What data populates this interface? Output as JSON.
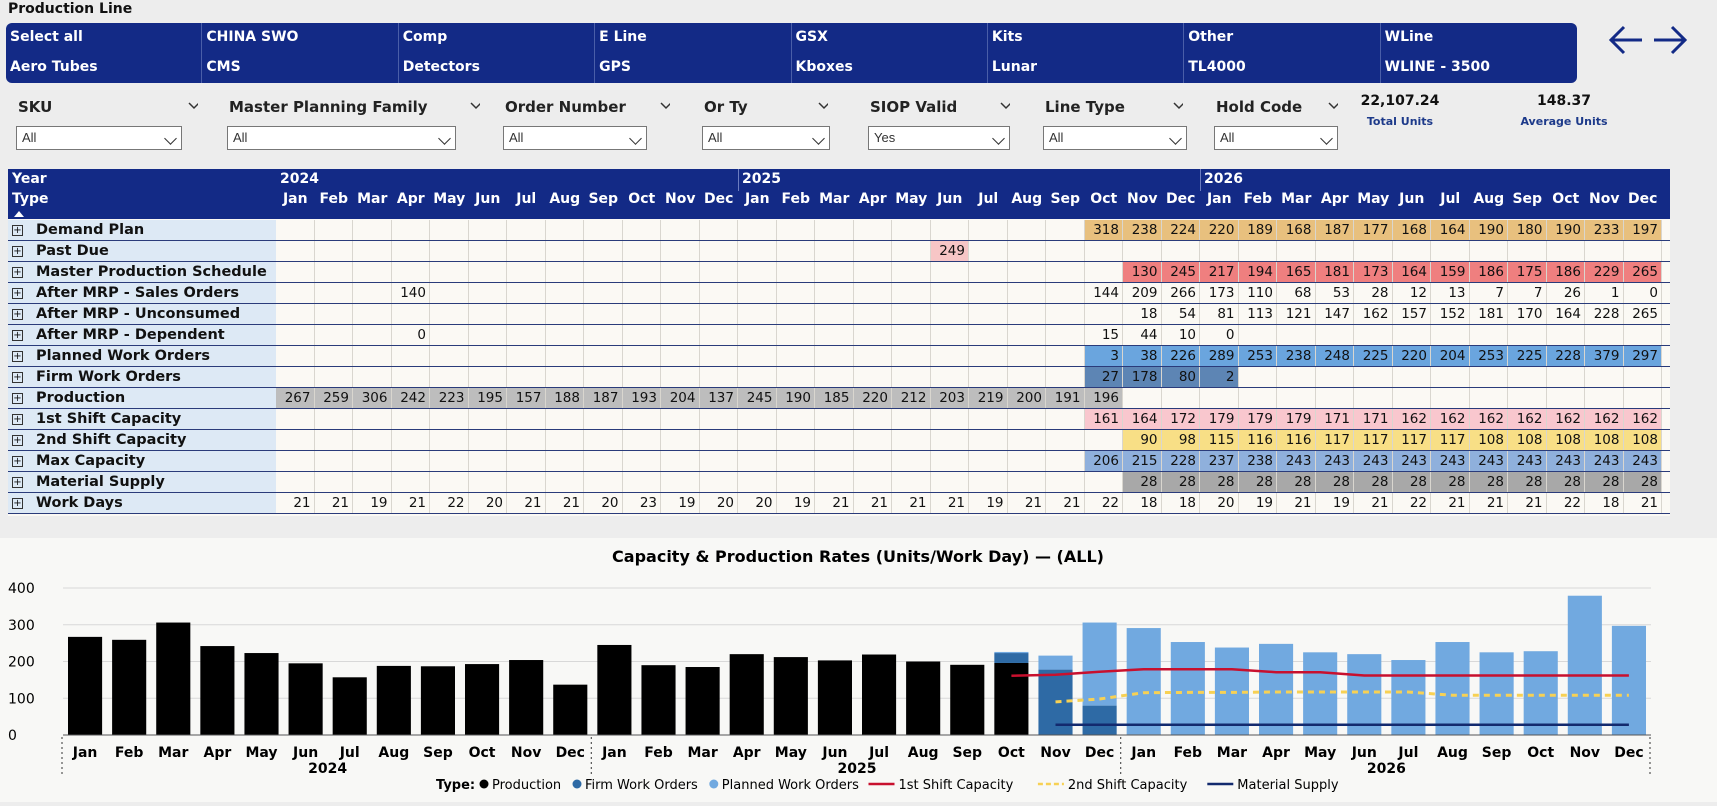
{
  "page_title": "Production Line",
  "slicer_items": [
    "Select all",
    "CHINA SWO",
    "Comp",
    "E Line",
    "GSX",
    "Kits",
    "Other",
    "WLine",
    "Aero Tubes",
    "CMS",
    "Detectors",
    "GPS",
    "Kboxes",
    "Lunar",
    "TL4000",
    "WLINE - 3500"
  ],
  "filters": [
    {
      "label": "SKU",
      "value": "All"
    },
    {
      "label": "Master Planning Family",
      "value": "All"
    },
    {
      "label": "Order Number",
      "value": "All"
    },
    {
      "label": "Or Ty",
      "value": "All"
    },
    {
      "label": "SIOP Valid",
      "value": "Yes"
    },
    {
      "label": "Line Type",
      "value": "All"
    },
    {
      "label": "Hold Code",
      "value": "All"
    }
  ],
  "kpis": [
    {
      "value": "22,107.24",
      "label": "Total Units"
    },
    {
      "value": "148.37",
      "label": "Average Units"
    }
  ],
  "matrix": {
    "year_header": "Year",
    "type_header": "Type",
    "years": [
      "2024",
      "2025",
      "2026"
    ],
    "months": [
      "Jan",
      "Feb",
      "Mar",
      "Apr",
      "May",
      "Jun",
      "Jul",
      "Aug",
      "Sep",
      "Oct",
      "Nov",
      "Dec",
      "Jan",
      "Feb",
      "Mar",
      "Apr",
      "May",
      "Jun",
      "Jul",
      "Aug",
      "Sep",
      "Oct",
      "Nov",
      "Dec",
      "Jan",
      "Feb",
      "Mar",
      "Apr",
      "May",
      "Jun",
      "Jul",
      "Aug",
      "Sep",
      "Oct",
      "Nov",
      "Dec"
    ],
    "rows": [
      {
        "label": "Demand Plan",
        "color": "#e8c07e",
        "start": 21,
        "values": [
          "318",
          "238",
          "224",
          "220",
          "189",
          "168",
          "187",
          "177",
          "168",
          "164",
          "190",
          "180",
          "190",
          "233",
          "197"
        ]
      },
      {
        "label": "Past Due",
        "color": "#f7c6c6",
        "start": 17,
        "values": [
          "249"
        ]
      },
      {
        "label": "Master Production Schedule",
        "color": "#ef7f7f",
        "start": 22,
        "values": [
          "130",
          "245",
          "217",
          "194",
          "165",
          "181",
          "173",
          "164",
          "159",
          "186",
          "175",
          "186",
          "229",
          "265"
        ]
      },
      {
        "label": "After MRP - Sales Orders",
        "color": "",
        "start": 3,
        "values": [
          "140",
          "",
          "",
          "",
          "",
          "",
          "",
          "",
          "",
          "",
          "",
          "",
          "",
          "",
          "",
          "",
          "",
          "",
          "144",
          "209",
          "266",
          "173",
          "110",
          "68",
          "53",
          "28",
          "12",
          "13",
          "7",
          "7",
          "26",
          "1",
          "0"
        ]
      },
      {
        "label": "After MRP - Unconsumed MPS",
        "color": "",
        "start": 22,
        "values": [
          "18",
          "54",
          "81",
          "113",
          "121",
          "147",
          "162",
          "157",
          "152",
          "181",
          "170",
          "164",
          "228",
          "265"
        ]
      },
      {
        "label": "After MRP - Dependent Demand",
        "color": "",
        "start": 3,
        "values": [
          "0",
          "",
          "",
          "",
          "",
          "",
          "",
          "",
          "",
          "",
          "",
          "",
          "",
          "",
          "",
          "",
          "",
          "",
          "15",
          "44",
          "10",
          "0"
        ]
      },
      {
        "label": "Planned Work Orders",
        "color": "#6aa5de",
        "start": 21,
        "values": [
          "3",
          "38",
          "226",
          "289",
          "253",
          "238",
          "248",
          "225",
          "220",
          "204",
          "253",
          "225",
          "228",
          "379",
          "297"
        ]
      },
      {
        "label": "Firm Work Orders",
        "color": "#5d85b4",
        "start": 21,
        "values": [
          "27",
          "178",
          "80",
          "2"
        ]
      },
      {
        "label": "Production",
        "color": "#bdbdbd",
        "start": 0,
        "values": [
          "267",
          "259",
          "306",
          "242",
          "223",
          "195",
          "157",
          "188",
          "187",
          "193",
          "204",
          "137",
          "245",
          "190",
          "185",
          "220",
          "212",
          "203",
          "219",
          "200",
          "191",
          "196"
        ]
      },
      {
        "label": "1st Shift Capacity",
        "color": "#f9c7ce",
        "start": 21,
        "values": [
          "161",
          "164",
          "172",
          "179",
          "179",
          "179",
          "171",
          "171",
          "162",
          "162",
          "162",
          "162",
          "162",
          "162",
          "162"
        ]
      },
      {
        "label": "2nd Shift Capacity",
        "color": "#f8df86",
        "start": 22,
        "values": [
          "90",
          "98",
          "115",
          "116",
          "116",
          "117",
          "117",
          "117",
          "117",
          "108",
          "108",
          "108",
          "108",
          "108"
        ]
      },
      {
        "label": "Max Capacity",
        "color": "#8fb0dc",
        "start": 21,
        "values": [
          "206",
          "215",
          "228",
          "237",
          "238",
          "243",
          "243",
          "243",
          "243",
          "243",
          "243",
          "243",
          "243",
          "243",
          "243"
        ]
      },
      {
        "label": "Material Supply",
        "color": "#a8a8a8",
        "start": 22,
        "values": [
          "28",
          "28",
          "28",
          "28",
          "28",
          "28",
          "28",
          "28",
          "28",
          "28",
          "28",
          "28",
          "28",
          "28"
        ]
      },
      {
        "label": "Work Days",
        "color": "",
        "start": 0,
        "values": [
          "21",
          "21",
          "19",
          "21",
          "22",
          "20",
          "21",
          "21",
          "20",
          "23",
          "19",
          "20",
          "20",
          "19",
          "21",
          "21",
          "21",
          "21",
          "19",
          "21",
          "21",
          "22",
          "18",
          "18",
          "20",
          "19",
          "21",
          "19",
          "21",
          "22",
          "21",
          "21",
          "21",
          "22",
          "18",
          "21"
        ]
      }
    ]
  },
  "chart_data": {
    "type": "bar",
    "title": "Capacity & Production Rates (Units/Work Day) — (ALL)",
    "years": [
      "2024",
      "2025",
      "2026"
    ],
    "categories": [
      "Jan",
      "Feb",
      "Mar",
      "Apr",
      "May",
      "Jun",
      "Jul",
      "Aug",
      "Sep",
      "Oct",
      "Nov",
      "Dec",
      "Jan",
      "Feb",
      "Mar",
      "Apr",
      "May",
      "Jun",
      "Jul",
      "Aug",
      "Sep",
      "Oct",
      "Nov",
      "Dec",
      "Jan",
      "Feb",
      "Mar",
      "Apr",
      "May",
      "Jun",
      "Jul",
      "Aug",
      "Sep",
      "Oct",
      "Nov",
      "Dec"
    ],
    "ylim": [
      0,
      400
    ],
    "yticks": [
      0,
      100,
      200,
      300,
      400
    ],
    "grid": true,
    "legend_title": "Type:",
    "legend_position": "bottom",
    "series": [
      {
        "name": "Production",
        "kind": "bar",
        "color": "#000000",
        "values": [
          267,
          259,
          306,
          242,
          223,
          195,
          157,
          188,
          187,
          193,
          204,
          137,
          245,
          190,
          185,
          220,
          212,
          203,
          219,
          200,
          191,
          196,
          null,
          null,
          null,
          null,
          null,
          null,
          null,
          null,
          null,
          null,
          null,
          null,
          null,
          null
        ]
      },
      {
        "name": "Firm Work Orders",
        "kind": "bar",
        "color": "#2e6aa5",
        "values": [
          null,
          null,
          null,
          null,
          null,
          null,
          null,
          null,
          null,
          null,
          null,
          null,
          null,
          null,
          null,
          null,
          null,
          null,
          null,
          null,
          null,
          27,
          178,
          80,
          2,
          null,
          null,
          null,
          null,
          null,
          null,
          null,
          null,
          null,
          null,
          null
        ]
      },
      {
        "name": "Planned Work Orders",
        "kind": "bar",
        "color": "#71a9e0",
        "values": [
          null,
          null,
          null,
          null,
          null,
          null,
          null,
          null,
          null,
          null,
          null,
          null,
          null,
          null,
          null,
          null,
          null,
          null,
          null,
          null,
          null,
          3,
          38,
          226,
          289,
          253,
          238,
          248,
          225,
          220,
          204,
          253,
          225,
          228,
          379,
          297
        ]
      },
      {
        "name": "1st Shift Capacity",
        "kind": "line",
        "color": "#c8102e",
        "values": [
          null,
          null,
          null,
          null,
          null,
          null,
          null,
          null,
          null,
          null,
          null,
          null,
          null,
          null,
          null,
          null,
          null,
          null,
          null,
          null,
          null,
          161,
          164,
          172,
          179,
          179,
          179,
          171,
          171,
          162,
          162,
          162,
          162,
          162,
          162,
          162
        ]
      },
      {
        "name": "2nd Shift Capacity",
        "kind": "dash",
        "color": "#f7d154",
        "values": [
          null,
          null,
          null,
          null,
          null,
          null,
          null,
          null,
          null,
          null,
          null,
          null,
          null,
          null,
          null,
          null,
          null,
          null,
          null,
          null,
          null,
          null,
          90,
          98,
          115,
          116,
          116,
          117,
          117,
          117,
          117,
          108,
          108,
          108,
          108,
          108
        ]
      },
      {
        "name": "Material Supply",
        "kind": "line",
        "color": "#132a6e",
        "values": [
          null,
          null,
          null,
          null,
          null,
          null,
          null,
          null,
          null,
          null,
          null,
          null,
          null,
          null,
          null,
          null,
          null,
          null,
          null,
          null,
          null,
          null,
          28,
          28,
          28,
          28,
          28,
          28,
          28,
          28,
          28,
          28,
          28,
          28,
          28,
          28
        ]
      }
    ]
  }
}
